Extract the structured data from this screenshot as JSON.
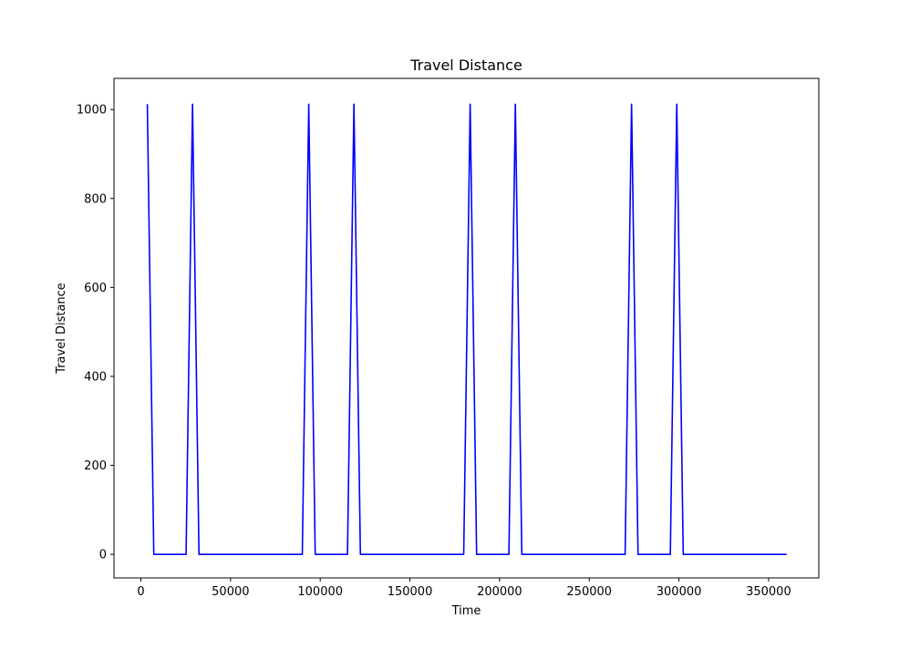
{
  "chart_data": {
    "type": "line",
    "title": "Travel Distance",
    "xlabel": "Time",
    "ylabel": "Travel Distance",
    "xlim": [
      -15000,
      378000
    ],
    "ylim": [
      -53,
      1070
    ],
    "xticks": [
      0,
      50000,
      100000,
      150000,
      200000,
      250000,
      300000,
      350000
    ],
    "xtick_labels": [
      "0",
      "50000",
      "100000",
      "150000",
      "200000",
      "250000",
      "300000",
      "350000"
    ],
    "yticks": [
      0,
      200,
      400,
      600,
      800,
      1000
    ],
    "ytick_labels": [
      "0",
      "200",
      "400",
      "600",
      "800",
      "1000"
    ],
    "grid": false,
    "series": [
      {
        "color": "#0000ff",
        "x": [
          3600,
          7200,
          25200,
          28800,
          32400,
          90000,
          93600,
          97200,
          115200,
          118800,
          122400,
          180000,
          183600,
          187200,
          205200,
          208800,
          212400,
          270000,
          273600,
          277200,
          295200,
          298800,
          302400,
          360000
        ],
        "y": [
          1012,
          0,
          0,
          1012,
          0,
          0,
          1012,
          0,
          0,
          1012,
          0,
          0,
          1012,
          0,
          0,
          1012,
          0,
          0,
          1012,
          0,
          0,
          1012,
          0,
          0
        ]
      }
    ]
  }
}
